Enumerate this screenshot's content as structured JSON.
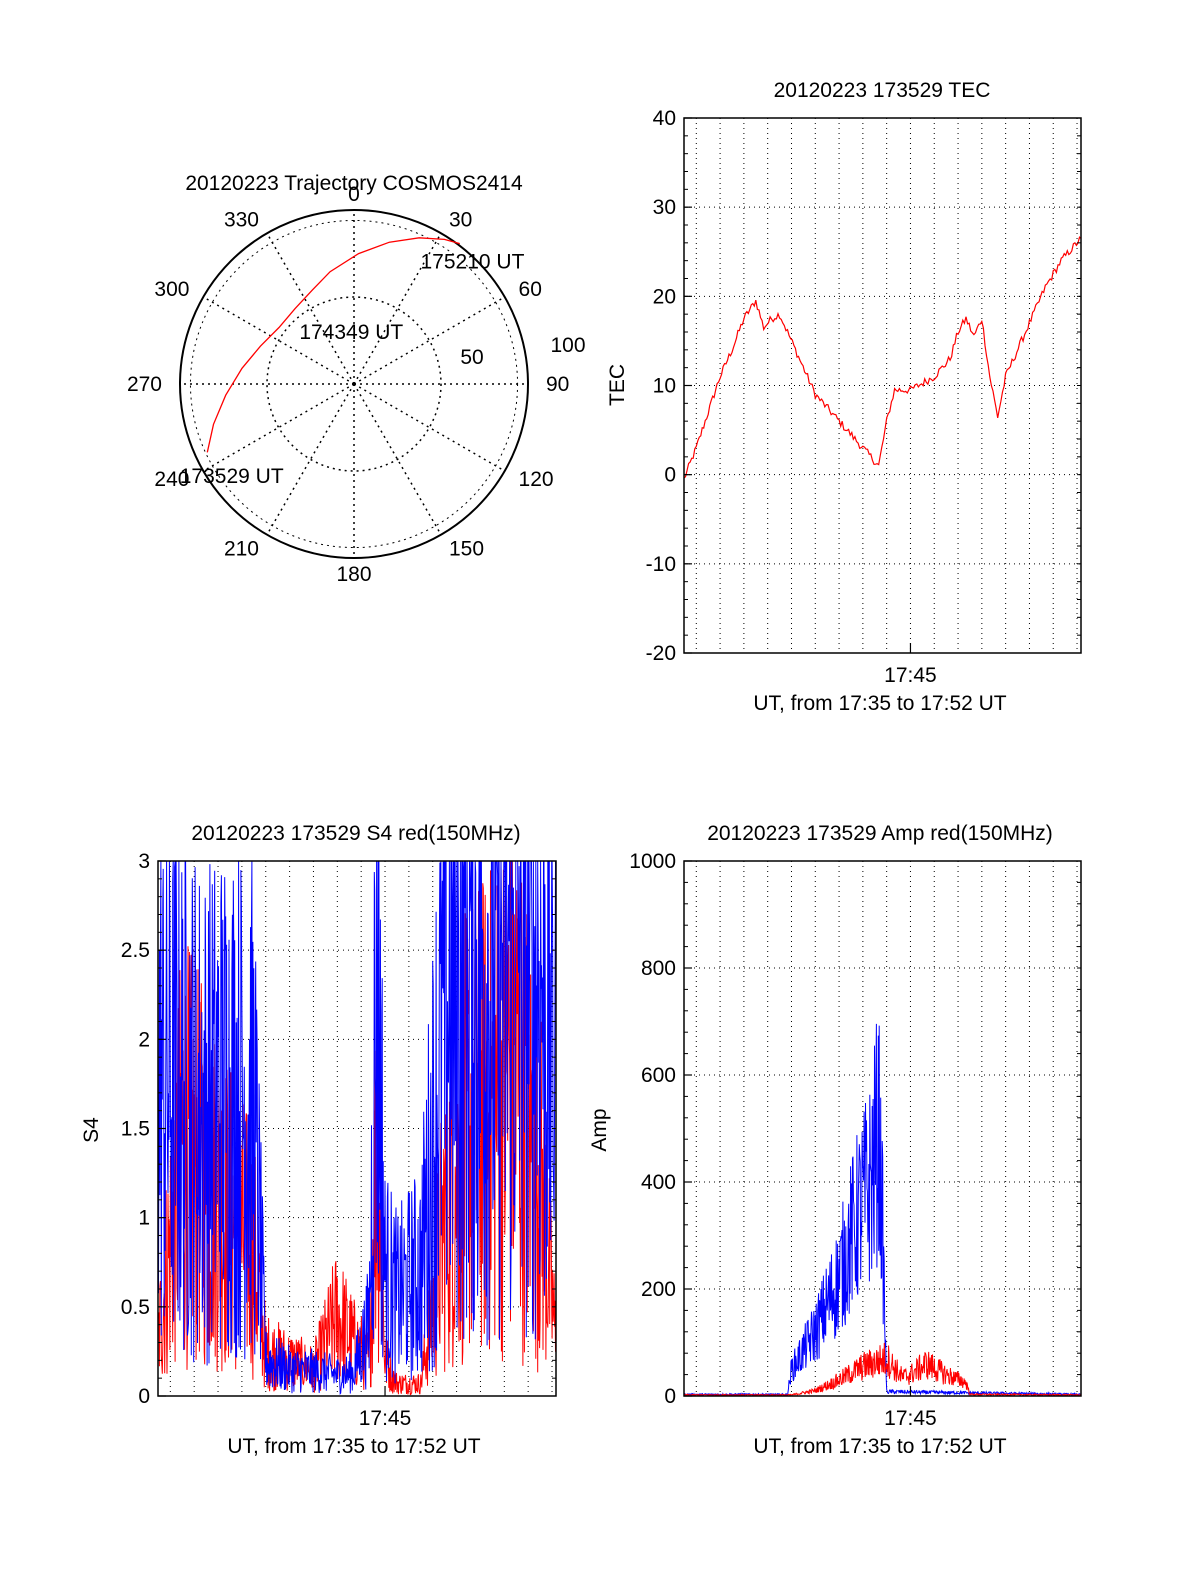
{
  "colors": {
    "red": "#ff0000",
    "blue": "#0000ff",
    "axis": "#000000",
    "grid": "#000000"
  },
  "chart_data": [
    {
      "id": "trajectory",
      "type": "polar",
      "title": "20120223 Trajectory COSMOS2414",
      "azimuth_labels": [
        "0",
        "30",
        "60",
        "90",
        "120",
        "150",
        "180",
        "210",
        "240",
        "270",
        "300",
        "330"
      ],
      "radius_labels": [
        "50",
        "100"
      ],
      "radius_range": [
        0,
        100
      ],
      "grid": true,
      "series": [
        {
          "color": "#ff0000",
          "points": [
            {
              "az": 245,
              "r": 93
            },
            {
              "az": 254,
              "r": 84
            },
            {
              "az": 265,
              "r": 74
            },
            {
              "az": 278,
              "r": 65
            },
            {
              "az": 292,
              "r": 58
            },
            {
              "az": 307,
              "r": 54
            },
            {
              "az": 322,
              "r": 55
            },
            {
              "az": 336,
              "r": 59
            },
            {
              "az": 348,
              "r": 66
            },
            {
              "az": 2,
              "r": 75
            },
            {
              "az": 14,
              "r": 84
            },
            {
              "az": 24,
              "r": 92
            },
            {
              "az": 32,
              "r": 98
            },
            {
              "az": 37,
              "r": 101
            }
          ]
        }
      ],
      "annotations": [
        {
          "text": "175210 UT",
          "az": 44,
          "r": 98
        },
        {
          "text": "174349 UT",
          "az": 357,
          "r": 30
        },
        {
          "text": "173529 UT",
          "az": 233,
          "r": 88
        }
      ]
    },
    {
      "id": "tec",
      "type": "line",
      "title": "20120223 173529 TEC",
      "xlabel": "UT, from 17:35 to 17:52 UT",
      "ylabel": "TEC",
      "x_range": [
        "17:35:29",
        "17:52:10"
      ],
      "x_ticks": [
        {
          "x": "17:45",
          "label": "17:45"
        }
      ],
      "y_range": [
        -20,
        40
      ],
      "y_ticks": [
        "-20",
        "-10",
        "0",
        "10",
        "20",
        "30",
        "40"
      ],
      "grid": true,
      "series": [
        {
          "color": "#ff0000",
          "x": [
            "17:35:29",
            "17:36:00",
            "17:36:30",
            "17:37:00",
            "17:37:30",
            "17:38:00",
            "17:38:30",
            "17:38:50",
            "17:39:10",
            "17:39:30",
            "17:39:50",
            "17:40:10",
            "17:41:00",
            "17:42:00",
            "17:43:00",
            "17:43:40",
            "17:44:00",
            "17:44:20",
            "17:45:00",
            "17:46:00",
            "17:46:40",
            "17:47:00",
            "17:47:20",
            "17:47:40",
            "17:48:00",
            "17:48:20",
            "17:48:40",
            "17:49:00",
            "17:49:20",
            "17:50:00",
            "17:50:40",
            "17:51:20",
            "17:52:10"
          ],
          "y": [
            -0.5,
            3,
            7,
            11,
            14,
            17.5,
            19.5,
            16.5,
            17.5,
            18,
            16,
            14,
            9,
            6,
            3,
            1,
            6,
            9.5,
            9.5,
            11,
            13,
            16,
            17.5,
            15.5,
            17.5,
            11,
            6.5,
            11,
            13,
            17,
            21,
            24,
            26.5
          ]
        }
      ]
    },
    {
      "id": "s4",
      "type": "line",
      "title": "20120223 173529 S4 red(150MHz)",
      "xlabel": "UT, from 17:35 to 17:52 UT",
      "ylabel": "S4",
      "x_range": [
        "17:35:29",
        "17:52:10"
      ],
      "x_ticks": [
        {
          "x": "17:45",
          "label": "17:45"
        }
      ],
      "y_range": [
        0,
        3
      ],
      "y_ticks": [
        "0",
        "0.5",
        "1",
        "1.5",
        "2",
        "2.5",
        "3"
      ],
      "grid": true,
      "series": [
        {
          "color": "#ff0000",
          "x": [
            "17:35:29",
            "17:36:30",
            "17:37:30",
            "17:38:30",
            "17:39:30",
            "17:40:00",
            "17:41:00",
            "17:42:00",
            "17:43:00",
            "17:43:40",
            "17:44:20",
            "17:44:40",
            "17:45:00",
            "17:45:30",
            "17:46:30",
            "17:47:00",
            "17:47:30",
            "17:48:30",
            "17:49:30",
            "17:50:30",
            "17:51:30",
            "17:52:10"
          ],
          "y": [
            0.3,
            1.4,
            1.2,
            1.0,
            0.8,
            0.25,
            0.2,
            0.15,
            0.45,
            0.3,
            0.2,
            1.5,
            0.2,
            0.07,
            0.07,
            0.5,
            1.0,
            1.5,
            1.6,
            1.8,
            1.2,
            0.3
          ]
        },
        {
          "color": "#0000ff",
          "x": [
            "17:35:29",
            "17:36:30",
            "17:37:30",
            "17:38:30",
            "17:39:30",
            "17:40:00",
            "17:41:00",
            "17:42:00",
            "17:43:00",
            "17:43:40",
            "17:44:20",
            "17:44:40",
            "17:45:00",
            "17:45:30",
            "17:46:30",
            "17:47:00",
            "17:47:30",
            "17:48:30",
            "17:49:30",
            "17:50:30",
            "17:51:30",
            "17:52:10"
          ],
          "y": [
            1.8,
            1.7,
            1.6,
            1.7,
            1.6,
            0.2,
            0.15,
            0.14,
            0.12,
            0.13,
            0.4,
            2.6,
            0.7,
            0.55,
            0.7,
            1.4,
            2.2,
            2.5,
            2.3,
            2.6,
            2.4,
            2.0
          ]
        }
      ]
    },
    {
      "id": "amp",
      "type": "line",
      "title": "20120223 173529 Amp red(150MHz)",
      "xlabel": "UT, from 17:35 to 17:52 UT",
      "ylabel": "Amp",
      "x_range": [
        "17:35:29",
        "17:52:10"
      ],
      "x_ticks": [
        {
          "x": "17:45",
          "label": "17:45"
        }
      ],
      "y_range": [
        0,
        1000
      ],
      "y_ticks": [
        "0",
        "200",
        "400",
        "600",
        "800",
        "1000"
      ],
      "grid": true,
      "series": [
        {
          "color": "#0000ff",
          "x": [
            "17:35:29",
            "17:39:50",
            "17:40:00",
            "17:41:00",
            "17:42:00",
            "17:42:40",
            "17:43:20",
            "17:43:40",
            "17:43:50",
            "17:44:00",
            "17:52:10"
          ],
          "y": [
            3,
            3,
            50,
            120,
            220,
            320,
            400,
            500,
            300,
            8,
            3
          ]
        },
        {
          "color": "#ff0000",
          "x": [
            "17:35:29",
            "17:40:00",
            "17:41:00",
            "17:42:00",
            "17:43:00",
            "17:44:00",
            "17:44:40",
            "17:45:00",
            "17:45:40",
            "17:46:30",
            "17:47:20",
            "17:47:30",
            "17:52:10"
          ],
          "y": [
            2,
            2,
            10,
            30,
            55,
            70,
            35,
            40,
            60,
            40,
            25,
            3,
            2
          ]
        }
      ]
    }
  ]
}
